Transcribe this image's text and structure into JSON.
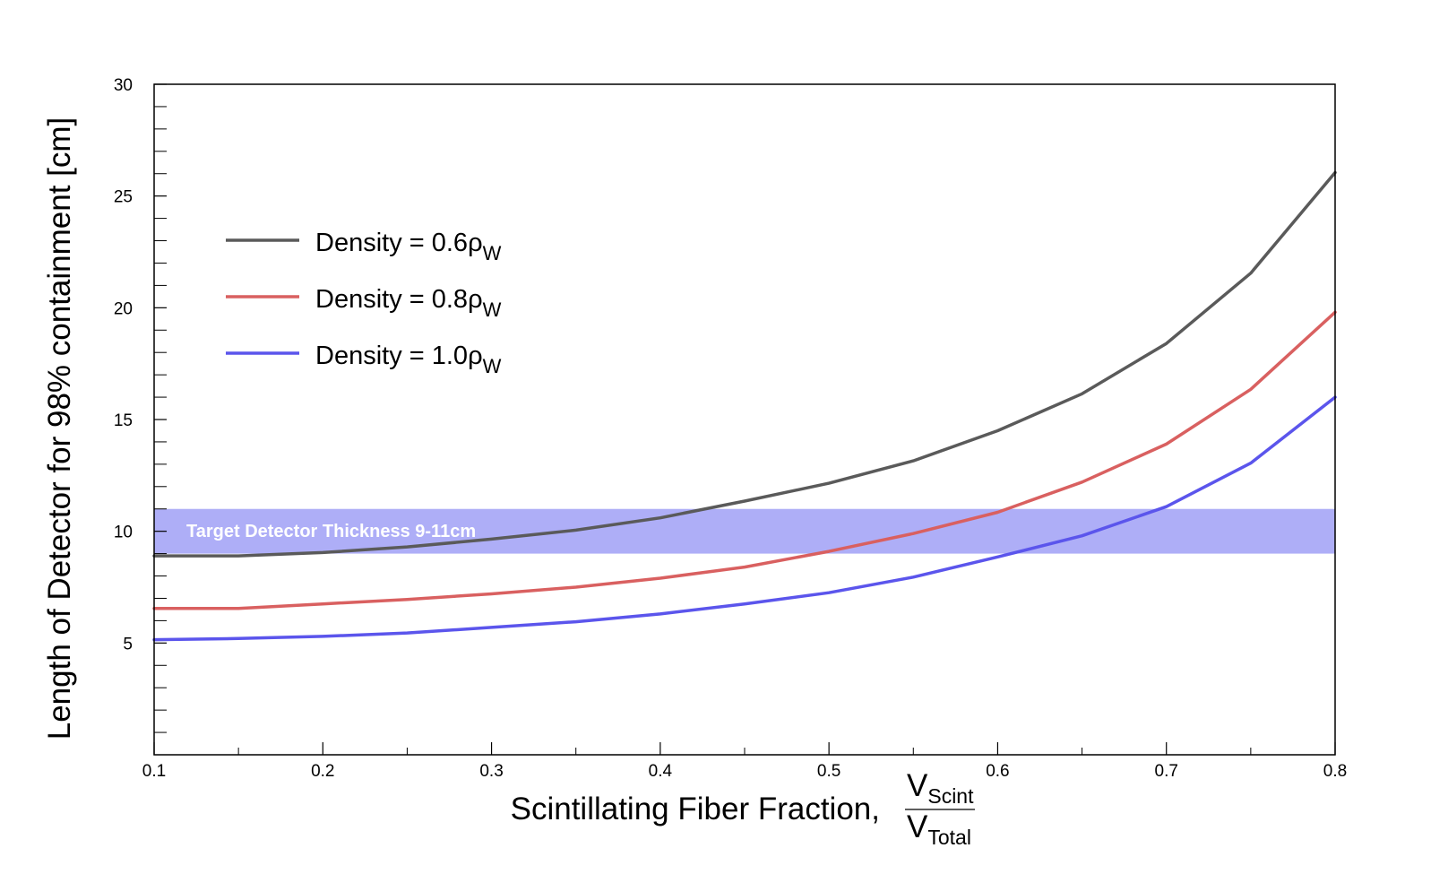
{
  "chart_data": {
    "type": "line",
    "title": "",
    "xlabel": "Scintillating Fiber Fraction,",
    "xlabel_fraction": {
      "numerator": "V",
      "numerator_sub": "Scint",
      "denominator": "V",
      "denominator_sub": "Total"
    },
    "ylabel": "Length of Detector for 98% containment [cm]",
    "xlim": [
      0.1,
      0.8
    ],
    "ylim": [
      0,
      30
    ],
    "x_ticks": [
      "0.1",
      "0.2",
      "0.3",
      "0.4",
      "0.5",
      "0.6",
      "0.7",
      "0.8"
    ],
    "y_ticks": [
      "5",
      "10",
      "15",
      "20",
      "25",
      "30"
    ],
    "grid": false,
    "legend_position": "top-left",
    "band": {
      "label": "Target Detector Thickness 9-11cm",
      "y_range": [
        9,
        11
      ],
      "color": "#aeaef7"
    },
    "x": [
      0.1,
      0.15,
      0.2,
      0.25,
      0.3,
      0.35,
      0.4,
      0.45,
      0.5,
      0.55,
      0.6,
      0.65,
      0.7,
      0.75,
      0.8
    ],
    "series": [
      {
        "name": "Density = 0.6ρ",
        "name_sub": "W",
        "color": "#5a5a5a",
        "values": [
          8.9,
          8.9,
          9.05,
          9.3,
          9.65,
          10.05,
          10.6,
          11.35,
          12.15,
          13.15,
          14.5,
          16.15,
          18.4,
          21.55,
          26.05
        ]
      },
      {
        "name": "Density = 0.8ρ",
        "name_sub": "W",
        "color": "#d96060",
        "values": [
          6.55,
          6.55,
          6.75,
          6.95,
          7.2,
          7.5,
          7.9,
          8.4,
          9.1,
          9.9,
          10.85,
          12.2,
          13.9,
          16.35,
          19.8
        ]
      },
      {
        "name": "Density = 1.0ρ",
        "name_sub": "W",
        "color": "#5b55ec",
        "values": [
          5.15,
          5.2,
          5.3,
          5.45,
          5.7,
          5.95,
          6.3,
          6.75,
          7.25,
          7.95,
          8.85,
          9.8,
          11.1,
          13.05,
          16.0
        ]
      }
    ]
  }
}
